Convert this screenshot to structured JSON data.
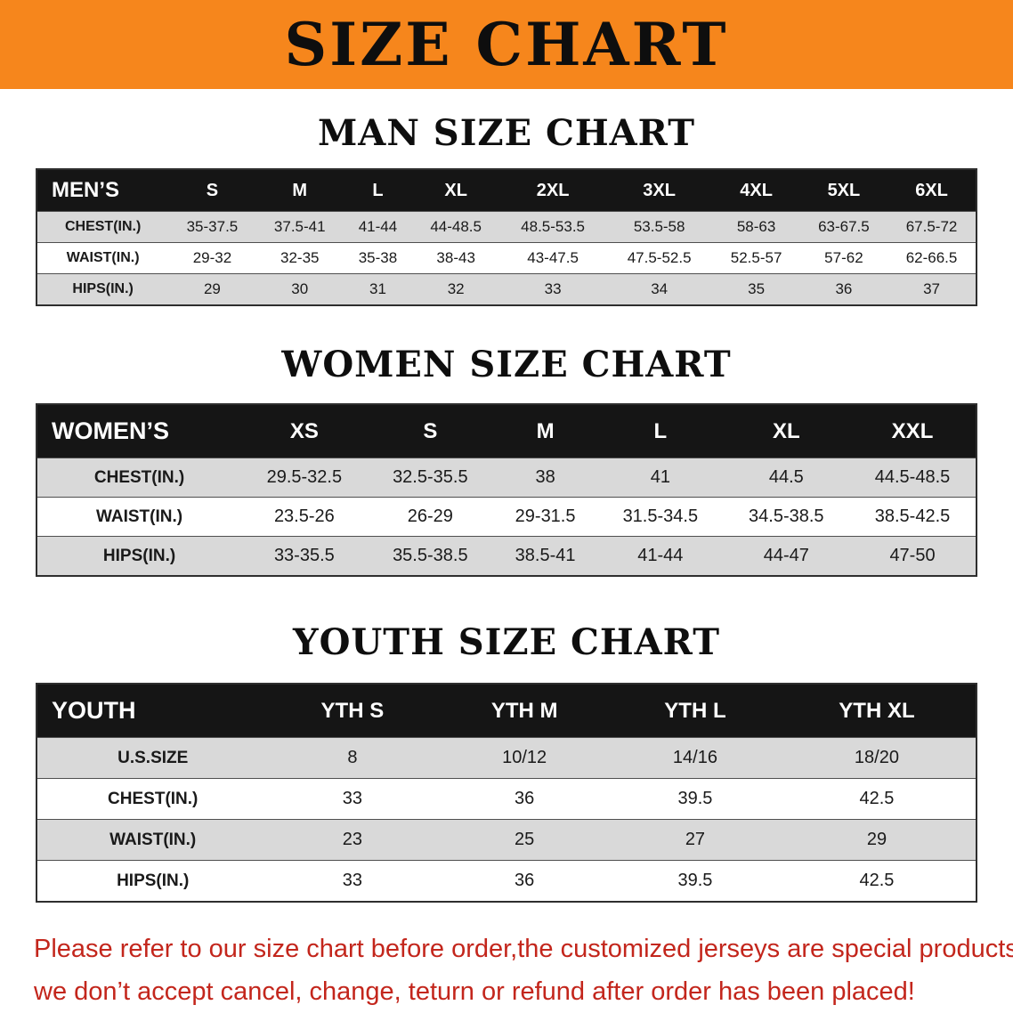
{
  "banner": {
    "title": "SIZE CHART"
  },
  "colors": {
    "accent-orange": "#f6861c",
    "header-black": "#151515",
    "row-gray": "#d9d9d9",
    "disclaimer-red": "#c3261c"
  },
  "sections": [
    {
      "heading": "MAN SIZE CHART",
      "table": {
        "header": [
          "MEN’S",
          "S",
          "M",
          "L",
          "XL",
          "2XL",
          "3XL",
          "4XL",
          "5XL",
          "6XL"
        ],
        "rows": [
          {
            "label": "CHEST(IN.)",
            "values": [
              "35-37.5",
              "37.5-41",
              "41-44",
              "44-48.5",
              "48.5-53.5",
              "53.5-58",
              "58-63",
              "63-67.5",
              "67.5-72"
            ]
          },
          {
            "label": "WAIST(IN.)",
            "values": [
              "29-32",
              "32-35",
              "35-38",
              "38-43",
              "43-47.5",
              "47.5-52.5",
              "52.5-57",
              "57-62",
              "62-66.5"
            ]
          },
          {
            "label": "HIPS(IN.)",
            "values": [
              "29",
              "30",
              "31",
              "32",
              "33",
              "34",
              "35",
              "36",
              "37"
            ]
          }
        ]
      }
    },
    {
      "heading": "WOMEN SIZE CHART",
      "table": {
        "header": [
          "WOMEN’S",
          "XS",
          "S",
          "M",
          "L",
          "XL",
          "XXL"
        ],
        "rows": [
          {
            "label": "CHEST(IN.)",
            "values": [
              "29.5-32.5",
              "32.5-35.5",
              "38",
              "41",
              "44.5",
              "44.5-48.5"
            ]
          },
          {
            "label": "WAIST(IN.)",
            "values": [
              "23.5-26",
              "26-29",
              "29-31.5",
              "31.5-34.5",
              "34.5-38.5",
              "38.5-42.5"
            ]
          },
          {
            "label": "HIPS(IN.)",
            "values": [
              "33-35.5",
              "35.5-38.5",
              "38.5-41",
              "41-44",
              "44-47",
              "47-50"
            ]
          }
        ]
      }
    },
    {
      "heading": "YOUTH SIZE CHART",
      "table": {
        "header": [
          "YOUTH",
          "YTH S",
          "YTH M",
          "YTH L",
          "YTH XL"
        ],
        "rows": [
          {
            "label": "U.S.SIZE",
            "values": [
              "8",
              "10/12",
              "14/16",
              "18/20"
            ]
          },
          {
            "label": "CHEST(IN.)",
            "values": [
              "33",
              "36",
              "39.5",
              "42.5"
            ]
          },
          {
            "label": "WAIST(IN.)",
            "values": [
              "23",
              "25",
              "27",
              "29"
            ]
          },
          {
            "label": "HIPS(IN.)",
            "values": [
              "33",
              "36",
              "39.5",
              "42.5"
            ]
          }
        ]
      }
    }
  ],
  "disclaimer": {
    "line1": "Please refer to our size chart before order,the customized jerseys are special products,",
    "line2": "we don’t accept cancel, change, teturn or refund after order has been placed!"
  }
}
